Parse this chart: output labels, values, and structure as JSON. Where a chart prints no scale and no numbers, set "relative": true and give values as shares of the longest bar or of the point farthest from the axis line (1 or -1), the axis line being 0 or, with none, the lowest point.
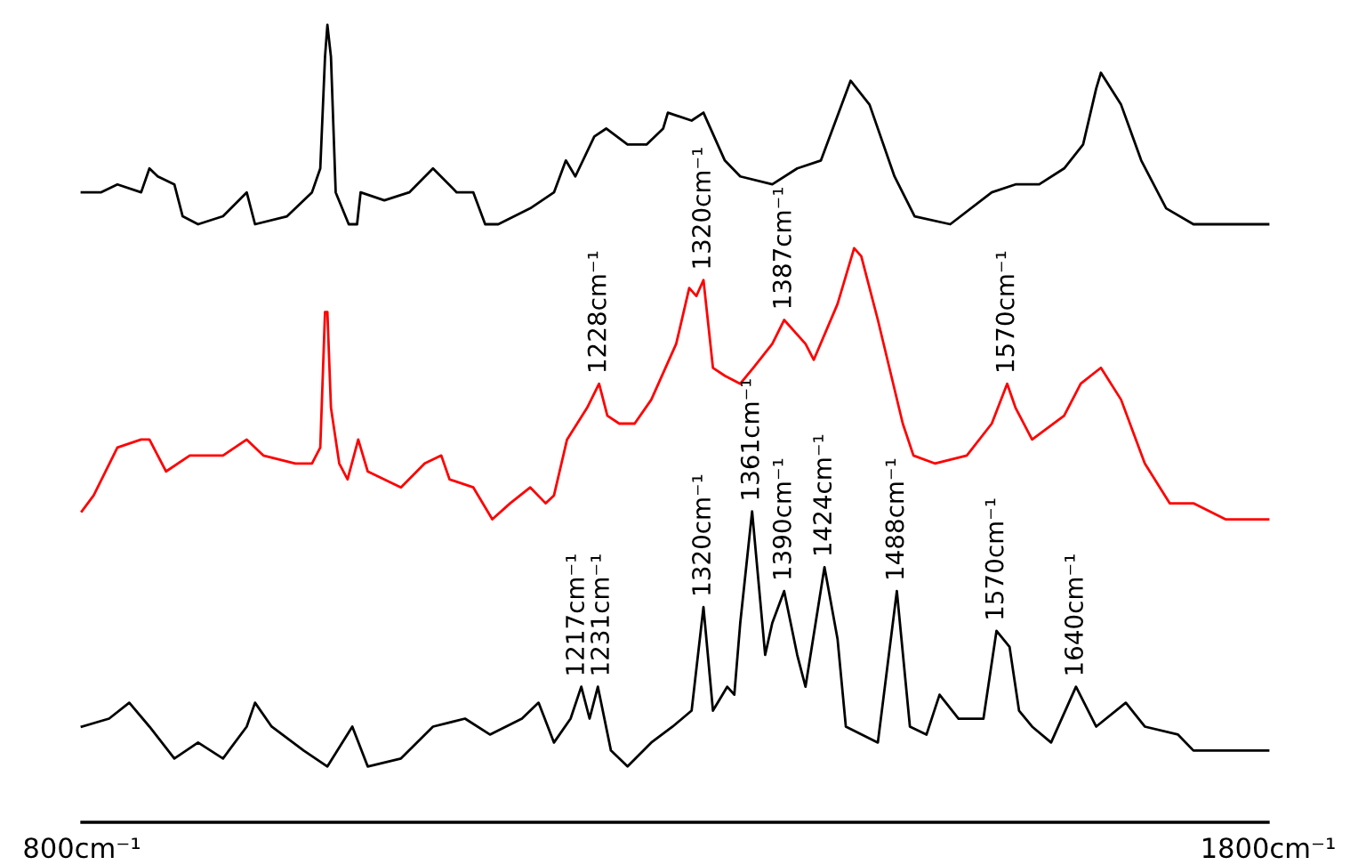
{
  "chart_data": {
    "type": "line",
    "relative": true,
    "grid": false,
    "legend": false,
    "marker": "none",
    "line_style": "solid",
    "xlim": [
      800,
      1800
    ],
    "xticks": [
      {
        "value": 800,
        "label": "800cm⁻¹"
      },
      {
        "value": 1800,
        "label": "1800cm⁻¹"
      }
    ],
    "tick_labels": "x",
    "series": [
      {
        "color": "#000000",
        "x": [
          800,
          816,
          830,
          850,
          857,
          864,
          878,
          885,
          898,
          919,
          939,
          946,
          973,
          994,
          1001,
          1005,
          1007,
          1010,
          1014,
          1025,
          1032,
          1035,
          1055,
          1076,
          1096,
          1116,
          1130,
          1140,
          1151,
          1178,
          1198,
          1208,
          1216,
          1232,
          1242,
          1260,
          1276,
          1290,
          1294,
          1314,
          1324,
          1342,
          1355,
          1382,
          1403,
          1423,
          1448,
          1464,
          1485,
          1502,
          1532,
          1567,
          1587,
          1607,
          1628,
          1644,
          1655,
          1659,
          1676,
          1693,
          1714,
          1737,
          1764,
          1800
        ],
        "values": [
          0.79,
          0.79,
          0.8,
          0.79,
          0.82,
          0.81,
          0.8,
          0.76,
          0.75,
          0.76,
          0.79,
          0.75,
          0.76,
          0.79,
          0.82,
          0.96,
          1.0,
          0.96,
          0.79,
          0.75,
          0.75,
          0.79,
          0.78,
          0.79,
          0.82,
          0.79,
          0.79,
          0.75,
          0.75,
          0.77,
          0.79,
          0.83,
          0.81,
          0.86,
          0.87,
          0.85,
          0.85,
          0.87,
          0.89,
          0.88,
          0.89,
          0.83,
          0.81,
          0.8,
          0.82,
          0.83,
          0.93,
          0.9,
          0.81,
          0.76,
          0.75,
          0.79,
          0.8,
          0.8,
          0.82,
          0.85,
          0.92,
          0.94,
          0.9,
          0.83,
          0.77,
          0.75,
          0.75,
          0.75
        ]
      },
      {
        "color": "#ff0000",
        "x": [
          800,
          810,
          830,
          850,
          857,
          871,
          891,
          919,
          939,
          953,
          980,
          994,
          1001,
          1005,
          1007,
          1010,
          1017,
          1024,
          1033,
          1041,
          1069,
          1089,
          1103,
          1110,
          1130,
          1146,
          1161,
          1178,
          1191,
          1198,
          1209,
          1226,
          1236,
          1243,
          1253,
          1266,
          1280,
          1301,
          1312,
          1318,
          1324,
          1332,
          1342,
          1355,
          1366,
          1382,
          1392,
          1410,
          1417,
          1437,
          1451,
          1457,
          1471,
          1492,
          1501,
          1519,
          1546,
          1567,
          1580,
          1587,
          1601,
          1628,
          1642,
          1659,
          1676,
          1696,
          1717,
          1737,
          1764,
          1800
        ],
        "values": [
          0.39,
          0.41,
          0.47,
          0.48,
          0.48,
          0.44,
          0.46,
          0.46,
          0.48,
          0.46,
          0.45,
          0.45,
          0.47,
          0.64,
          0.64,
          0.52,
          0.45,
          0.43,
          0.48,
          0.44,
          0.42,
          0.45,
          0.46,
          0.43,
          0.42,
          0.38,
          0.4,
          0.42,
          0.4,
          0.41,
          0.48,
          0.52,
          0.55,
          0.51,
          0.5,
          0.5,
          0.53,
          0.6,
          0.67,
          0.66,
          0.68,
          0.57,
          0.56,
          0.55,
          0.57,
          0.6,
          0.63,
          0.6,
          0.58,
          0.65,
          0.72,
          0.71,
          0.63,
          0.5,
          0.46,
          0.45,
          0.46,
          0.5,
          0.55,
          0.52,
          0.48,
          0.51,
          0.55,
          0.57,
          0.53,
          0.45,
          0.4,
          0.4,
          0.38,
          0.38
        ]
      },
      {
        "color": "#000000",
        "x": [
          800,
          823,
          840,
          857,
          878,
          898,
          919,
          939,
          946,
          960,
          987,
          1007,
          1028,
          1041,
          1069,
          1096,
          1123,
          1144,
          1171,
          1185,
          1198,
          1212,
          1221,
          1228,
          1235,
          1246,
          1260,
          1280,
          1298,
          1314,
          1324,
          1332,
          1344,
          1350,
          1355,
          1365,
          1376,
          1382,
          1392,
          1403,
          1410,
          1426,
          1437,
          1444,
          1471,
          1487,
          1498,
          1512,
          1523,
          1539,
          1560,
          1571,
          1582,
          1590,
          1601,
          1617,
          1638,
          1655,
          1680,
          1696,
          1724,
          1737,
          1764,
          1800
        ],
        "values": [
          0.12,
          0.13,
          0.15,
          0.12,
          0.08,
          0.1,
          0.08,
          0.12,
          0.15,
          0.12,
          0.09,
          0.07,
          0.12,
          0.07,
          0.08,
          0.12,
          0.13,
          0.11,
          0.13,
          0.15,
          0.1,
          0.13,
          0.17,
          0.13,
          0.17,
          0.09,
          0.07,
          0.1,
          0.12,
          0.14,
          0.27,
          0.14,
          0.17,
          0.16,
          0.25,
          0.39,
          0.21,
          0.25,
          0.29,
          0.21,
          0.17,
          0.32,
          0.23,
          0.12,
          0.1,
          0.29,
          0.12,
          0.11,
          0.16,
          0.13,
          0.13,
          0.24,
          0.22,
          0.14,
          0.12,
          0.1,
          0.17,
          0.12,
          0.15,
          0.12,
          0.11,
          0.09,
          0.09,
          0.09
        ]
      }
    ],
    "annotations": [
      {
        "text": "1228cm⁻¹",
        "x": 1236,
        "y": 0.55
      },
      {
        "text": "1320cm⁻¹",
        "x": 1324,
        "y": 0.68
      },
      {
        "text": "1387cm⁻¹",
        "x": 1392,
        "y": 0.63
      },
      {
        "text": "1570cm⁻¹",
        "x": 1580,
        "y": 0.55
      },
      {
        "text": "1217cm⁻¹",
        "x": 1221,
        "y": 0.17
      },
      {
        "text": "1231cm⁻¹",
        "x": 1235,
        "y": 0.17
      },
      {
        "text": "1320cm⁻¹",
        "x": 1324,
        "y": 0.27
      },
      {
        "text": "1361cm⁻¹",
        "x": 1365,
        "y": 0.39
      },
      {
        "text": "1390cm⁻¹",
        "x": 1392,
        "y": 0.29
      },
      {
        "text": "1424cm⁻¹",
        "x": 1426,
        "y": 0.32
      },
      {
        "text": "1488cm⁻¹",
        "x": 1487,
        "y": 0.29
      },
      {
        "text": "1570cm⁻¹",
        "x": 1571,
        "y": 0.24
      },
      {
        "text": "1640cm⁻¹",
        "x": 1638,
        "y": 0.17
      }
    ]
  }
}
